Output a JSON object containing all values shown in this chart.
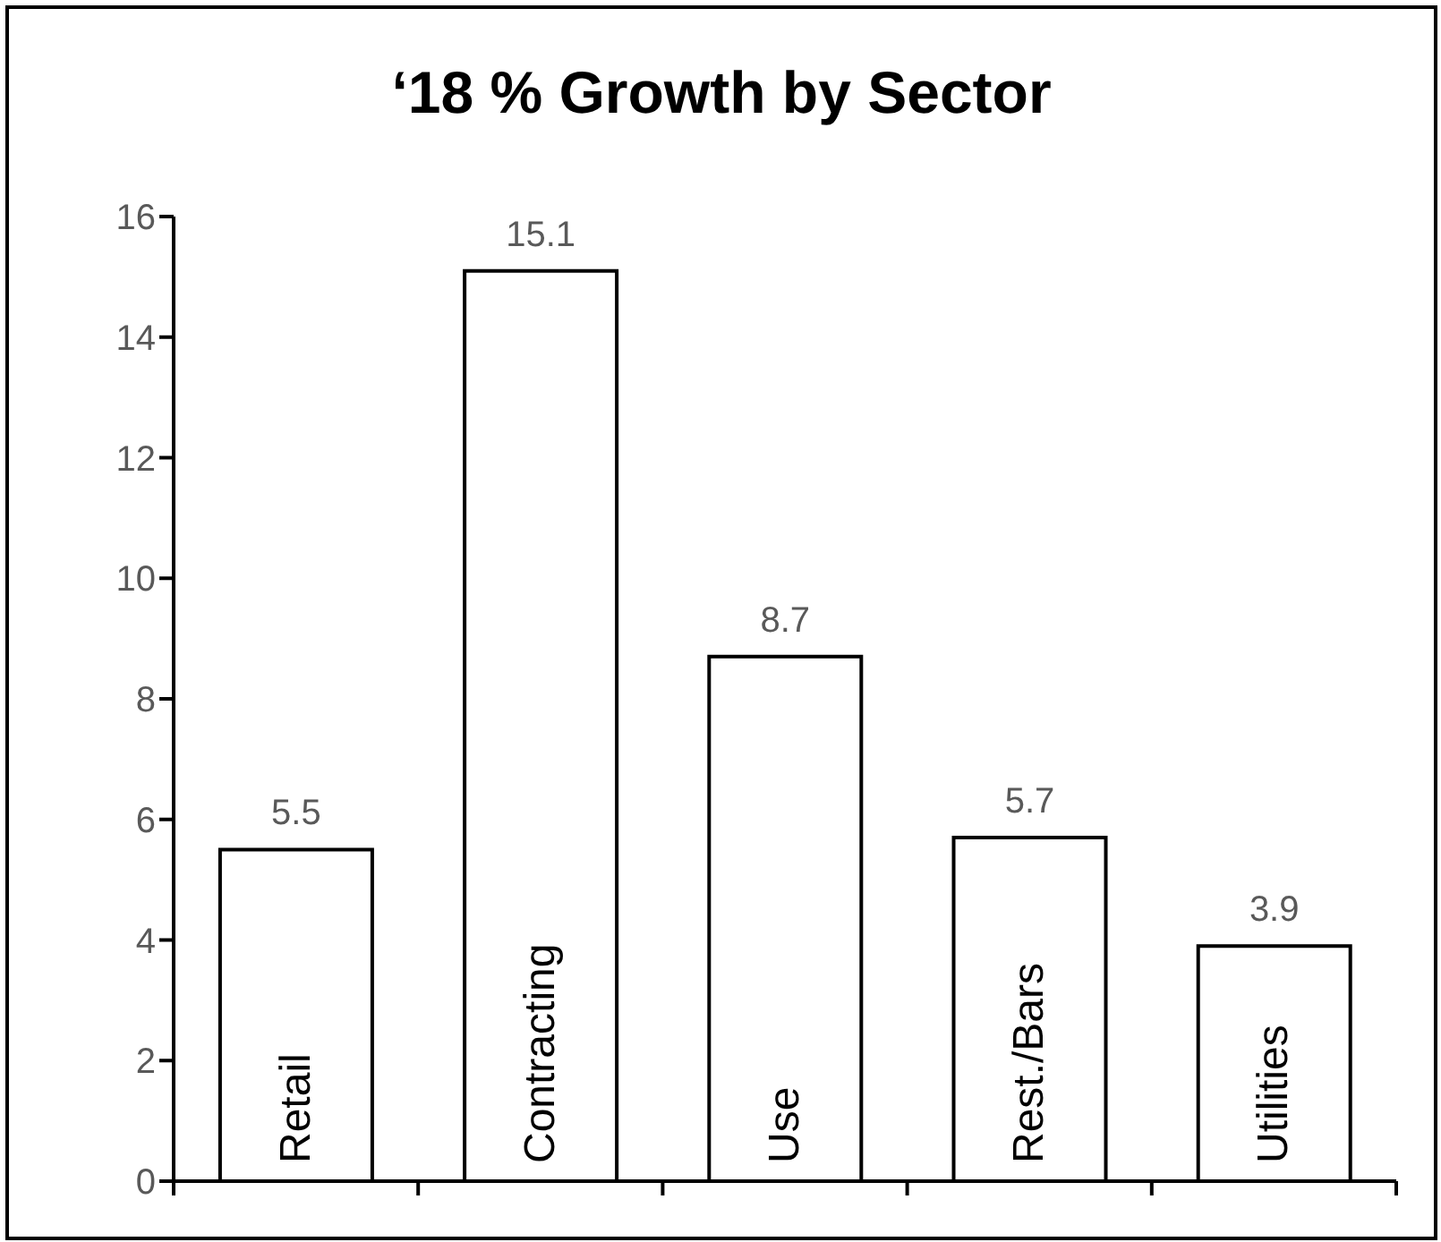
{
  "chart_data": {
    "type": "bar",
    "title": "‘18 % Growth by Sector",
    "categories": [
      "Retail",
      "Contracting",
      "Use",
      "Rest./Bars",
      "Utilities"
    ],
    "values": [
      5.5,
      15.1,
      8.7,
      5.7,
      3.9
    ],
    "color": "#ffffff",
    "ylim": [
      0,
      16
    ],
    "yticks": [
      0,
      2,
      4,
      6,
      8,
      10,
      12,
      14,
      16
    ],
    "data_labels": true,
    "grid": false
  }
}
